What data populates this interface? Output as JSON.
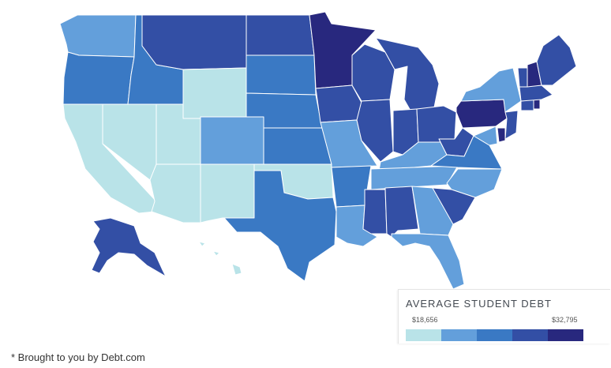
{
  "legend": {
    "title": "AVERAGE STUDENT DEBT",
    "min_label": "$18,656",
    "max_label": "$32,795",
    "bins": [
      {
        "level": 1,
        "color": "#b9e3e8"
      },
      {
        "level": 2,
        "color": "#639fdb"
      },
      {
        "level": 3,
        "color": "#3a79c4"
      },
      {
        "level": 4,
        "color": "#334fa5"
      },
      {
        "level": 5,
        "color": "#28287e"
      }
    ]
  },
  "footnote": "* Brought to you by Debt.com",
  "states": {
    "WA": 2,
    "OR": 3,
    "CA": 1,
    "NV": 1,
    "ID": 3,
    "MT": 4,
    "WY": 1,
    "UT": 1,
    "AZ": 1,
    "CO": 2,
    "NM": 1,
    "ND": 4,
    "SD": 3,
    "NE": 3,
    "KS": 3,
    "OK": 1,
    "TX": 3,
    "MN": 5,
    "IA": 4,
    "MO": 2,
    "AR": 3,
    "LA": 2,
    "WI": 4,
    "IL": 4,
    "MS": 4,
    "MI": 4,
    "IN": 4,
    "KY": 2,
    "TN": 2,
    "AL": 4,
    "OH": 4,
    "WV": 4,
    "VA": 3,
    "NC": 2,
    "SC": 4,
    "GA": 2,
    "FL": 2,
    "PA": 5,
    "NY": 2,
    "ME": 4,
    "VT": 4,
    "NH": 5,
    "MA": 4,
    "CT": 4,
    "RI": 5,
    "NJ": 4,
    "DE": 5,
    "MD": 2,
    "AK": 4,
    "HI": 1
  }
}
